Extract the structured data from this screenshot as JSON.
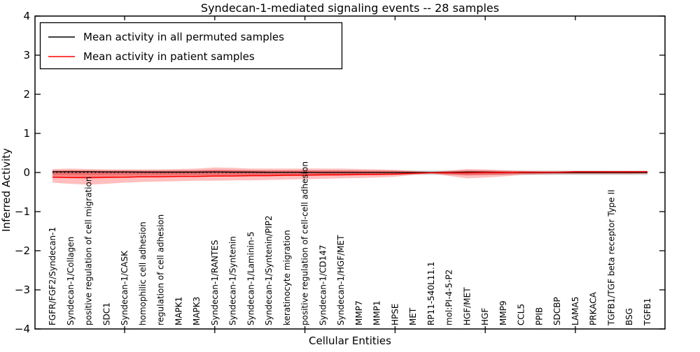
{
  "figure": {
    "title": "Syndecan-1-mediated signaling events -- 28 samples",
    "xlabel": "Cellular Entities",
    "ylabel": "Inferred Activity"
  },
  "legend": {
    "position": "upper left",
    "items": [
      {
        "label": "Mean activity in all permuted samples",
        "color": "#000000"
      },
      {
        "label": "Mean activity in patient samples",
        "color": "#ff0000"
      }
    ]
  },
  "chart_data": {
    "type": "line",
    "title": "Syndecan-1-mediated signaling events -- 28 samples",
    "xlabel": "Cellular Entities",
    "ylabel": "Inferred Activity",
    "ylim": [
      -4,
      4
    ],
    "yticks": [
      -4,
      -3,
      -2,
      -1,
      0,
      1,
      2,
      3,
      4
    ],
    "grid": false,
    "legend_position": "upper left",
    "x_major_ticks_at_positions": [
      5,
      10,
      15,
      20,
      25,
      30
    ],
    "categories": [
      "FGFR/FGF2/Syndecan-1",
      "Syndecan-1/Collagen",
      "positive regulation of cell migration",
      "SDC1",
      "Syndecan-1/CASK",
      "homophilic cell adhesion",
      "regulation of cell adhesion",
      "MAPK1",
      "MAPK3",
      "Syndecan-1/RANTES",
      "Syndecan-1/Syntenin",
      "Syndecan-1/Laminin-5",
      "Syndecan-1/Syntenin/PIP2",
      "keratinocyte migration",
      "positive regulation of cell-cell adhesion",
      "Syndecan-1/CD147",
      "Syndecan-1/HGF/MET",
      "MMP7",
      "MMP1",
      "HPSE",
      "MET",
      "RP11-540L11.1",
      "mol:PI-4-5-P2",
      "HGF/MET",
      "HGF",
      "MMP9",
      "CCL5",
      "PPIB",
      "SDCBP",
      "LAMA5",
      "PRKACA",
      "TGFB1/TGF beta receptor Type II",
      "BSG",
      "TGFB1"
    ],
    "series": [
      {
        "name": "Mean activity in all permuted samples",
        "color": "#000000",
        "width": 1.3,
        "values": [
          0.02,
          0.02,
          0.02,
          0.015,
          0.015,
          0.01,
          0.01,
          0.01,
          0.01,
          0.015,
          0.01,
          0.01,
          0.005,
          0.005,
          0.005,
          0,
          0,
          0,
          0,
          0,
          0,
          0,
          0,
          0.01,
          0.01,
          0.005,
          0,
          0,
          0,
          0,
          0,
          0,
          0,
          0
        ]
      },
      {
        "name": "Mean activity in patient samples",
        "color": "#ff0000",
        "width": 1.5,
        "values": [
          -0.12,
          -0.13,
          -0.13,
          -0.12,
          -0.12,
          -0.11,
          -0.11,
          -0.1,
          -0.1,
          -0.09,
          -0.09,
          -0.08,
          -0.08,
          -0.07,
          -0.07,
          -0.06,
          -0.06,
          -0.05,
          -0.05,
          -0.04,
          -0.02,
          -0.01,
          -0.01,
          -0.01,
          0.0,
          0.0,
          0.01,
          0.01,
          0.01,
          0.02,
          0.02,
          0.02,
          0.02,
          0.02
        ]
      }
    ],
    "bands": [
      {
        "name": "permuted-sample-spread",
        "color": "rgba(0,0,0,0.18)",
        "top": [
          0.05,
          0.05,
          0.05,
          0.05,
          0.05,
          0.05,
          0.05,
          0.05,
          0.05,
          0.05,
          0.05,
          0.05,
          0.05,
          0.05,
          0.05,
          0.05,
          0.05,
          0.05,
          0.05,
          0.05,
          0.05,
          0.05,
          0.05,
          0.05,
          0.05,
          0.05,
          0.05,
          0.05,
          0.05,
          0.05,
          0.05,
          0.05,
          0.05,
          0.05
        ],
        "bottom": [
          -0.06,
          -0.06,
          -0.06,
          -0.06,
          -0.06,
          -0.06,
          -0.06,
          -0.06,
          -0.06,
          -0.06,
          -0.06,
          -0.06,
          -0.06,
          -0.06,
          -0.06,
          -0.06,
          -0.06,
          -0.06,
          -0.06,
          -0.06,
          -0.06,
          -0.06,
          -0.06,
          -0.06,
          -0.06,
          -0.06,
          -0.06,
          -0.06,
          -0.06,
          -0.06,
          -0.06,
          -0.06,
          -0.06,
          -0.06
        ]
      },
      {
        "name": "patient-sample-range",
        "color": "rgba(255,0,0,0.25)",
        "top": [
          0.09,
          0.1,
          0.09,
          0.08,
          0.08,
          0.08,
          0.08,
          0.09,
          0.1,
          0.13,
          0.12,
          0.1,
          0.1,
          0.1,
          0.1,
          0.1,
          0.1,
          0.09,
          0.08,
          0.07,
          0.04,
          0.015,
          0.05,
          0.09,
          0.08,
          0.06,
          0.04,
          0.03,
          0.03,
          0.03,
          0.03,
          0.03,
          0.03,
          0.03
        ],
        "bottom": [
          -0.26,
          -0.29,
          -0.31,
          -0.29,
          -0.26,
          -0.24,
          -0.23,
          -0.22,
          -0.21,
          -0.21,
          -0.2,
          -0.2,
          -0.19,
          -0.18,
          -0.17,
          -0.16,
          -0.15,
          -0.14,
          -0.13,
          -0.11,
          -0.06,
          -0.02,
          -0.09,
          -0.15,
          -0.13,
          -0.1,
          -0.06,
          -0.05,
          -0.04,
          -0.04,
          -0.04,
          -0.04,
          -0.04,
          -0.03
        ]
      },
      {
        "name": "patient-sample-core",
        "color": "rgba(255,0,0,0.30)",
        "top": [
          0.05,
          0.055,
          0.05,
          0.044,
          0.044,
          0.044,
          0.044,
          0.05,
          0.055,
          0.072,
          0.066,
          0.055,
          0.055,
          0.055,
          0.055,
          0.055,
          0.055,
          0.05,
          0.044,
          0.039,
          0.022,
          0.008,
          0.028,
          0.05,
          0.044,
          0.033,
          0.022,
          0.017,
          0.017,
          0.017,
          0.017,
          0.017,
          0.017,
          0.017
        ],
        "bottom": [
          -0.13,
          -0.145,
          -0.155,
          -0.145,
          -0.13,
          -0.12,
          -0.115,
          -0.11,
          -0.105,
          -0.105,
          -0.1,
          -0.1,
          -0.095,
          -0.09,
          -0.085,
          -0.08,
          -0.075,
          -0.07,
          -0.065,
          -0.055,
          -0.03,
          -0.01,
          -0.045,
          -0.075,
          -0.065,
          -0.05,
          -0.03,
          -0.025,
          -0.02,
          -0.02,
          -0.02,
          -0.02,
          -0.02,
          -0.015
        ]
      }
    ],
    "zero_line": {
      "y": 0,
      "style": "dotted",
      "color": "#000000"
    },
    "ytick_labels": [
      "−4",
      "−3",
      "−2",
      "−1",
      "0",
      "1",
      "2",
      "3",
      "4"
    ]
  }
}
